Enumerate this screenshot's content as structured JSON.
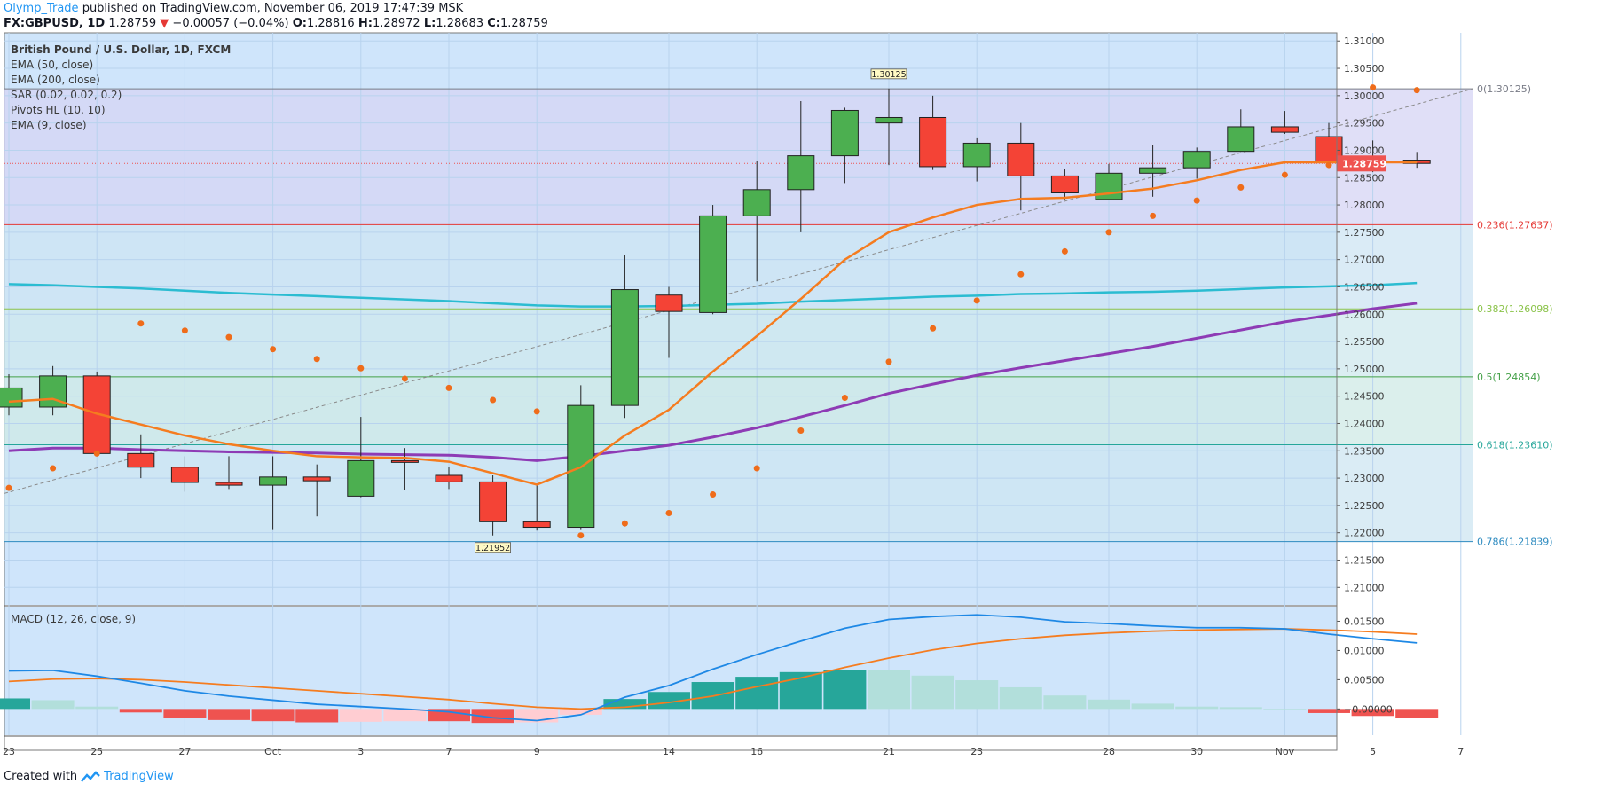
{
  "header": {
    "author": "Olymp_Trade",
    "published": "published on TradingView.com, November 06, 2019 17:47:39 MSK",
    "symbol": "FX:GBPUSD, 1D",
    "last": "1.28759",
    "change": "−0.00057 (−0.04%)",
    "o_label": "O:",
    "o": "1.28816",
    "h_label": "H:",
    "h": "1.28972",
    "l_label": "L:",
    "l": "1.28683",
    "c_label": "C:",
    "c": "1.28759"
  },
  "legend": {
    "title": "British Pound / U.S. Dollar, 1D, FXCM",
    "items": [
      "EMA (50, close)",
      "EMA (200, close)",
      "SAR (0.02, 0.02, 0.2)",
      "Pivots HL (10, 10)",
      "EMA (9, close)"
    ]
  },
  "macd_legend": "MACD (12, 26, close, 9)",
  "footer": {
    "created": "Created with",
    "brand": "TradingView"
  },
  "colors": {
    "up": "#4caf50",
    "down": "#f44336",
    "ema9": "#f57c1f",
    "ema50": "#8e3bb5",
    "ema200": "#2bbcd1",
    "sar": "#ef6c1a",
    "macd": "#1e88e5",
    "signal": "#f57c1f",
    "bg": "#cfe5fb",
    "price_tag": "#ef5350"
  },
  "chart_data": {
    "type": "candlestick",
    "price_axis": {
      "ylim": [
        1.2068,
        1.3115
      ],
      "ticks": [
        "1.31000",
        "1.30500",
        "1.30000",
        "1.29500",
        "1.29000",
        "1.28500",
        "1.28000",
        "1.27500",
        "1.27000",
        "1.26500",
        "1.26000",
        "1.25500",
        "1.25000",
        "1.24500",
        "1.24000",
        "1.23500",
        "1.23000",
        "1.22500",
        "1.22000",
        "1.21500",
        "1.21000"
      ],
      "current_price": "1.28759"
    },
    "x_axis": {
      "ticks": [
        {
          "label": "23",
          "i": 0
        },
        {
          "label": "25",
          "i": 2
        },
        {
          "label": "27",
          "i": 4
        },
        {
          "label": "Oct",
          "i": 6
        },
        {
          "label": "3",
          "i": 8
        },
        {
          "label": "7",
          "i": 10
        },
        {
          "label": "9",
          "i": 12
        },
        {
          "label": "14",
          "i": 15
        },
        {
          "label": "16",
          "i": 17
        },
        {
          "label": "21",
          "i": 20
        },
        {
          "label": "23",
          "i": 22
        },
        {
          "label": "28",
          "i": 25
        },
        {
          "label": "30",
          "i": 27
        },
        {
          "label": "Nov",
          "i": 29
        },
        {
          "label": "5",
          "i": 31
        },
        {
          "label": "7",
          "i": 33
        }
      ]
    },
    "candles": [
      {
        "o": 1.243,
        "h": 1.249,
        "l": 1.2415,
        "c": 1.2465
      },
      {
        "o": 1.243,
        "h": 1.2505,
        "l": 1.2415,
        "c": 1.2487
      },
      {
        "o": 1.2487,
        "h": 1.2495,
        "l": 1.2345,
        "c": 1.2345
      },
      {
        "o": 1.2345,
        "h": 1.238,
        "l": 1.23,
        "c": 1.232
      },
      {
        "o": 1.232,
        "h": 1.234,
        "l": 1.2275,
        "c": 1.2292
      },
      {
        "o": 1.2292,
        "h": 1.234,
        "l": 1.228,
        "c": 1.2287
      },
      {
        "o": 1.2287,
        "h": 1.234,
        "l": 1.2205,
        "c": 1.2302
      },
      {
        "o": 1.2302,
        "h": 1.2325,
        "l": 1.223,
        "c": 1.2295
      },
      {
        "o": 1.2267,
        "h": 1.2412,
        "l": 1.2265,
        "c": 1.2332
      },
      {
        "o": 1.2332,
        "h": 1.2355,
        "l": 1.2278,
        "c": 1.233
      },
      {
        "o": 1.2305,
        "h": 1.232,
        "l": 1.228,
        "c": 1.2293
      },
      {
        "o": 1.2293,
        "h": 1.2305,
        "l": 1.2195,
        "c": 1.222
      },
      {
        "o": 1.222,
        "h": 1.229,
        "l": 1.2204,
        "c": 1.221
      },
      {
        "o": 1.221,
        "h": 1.247,
        "l": 1.2205,
        "c": 1.2433
      },
      {
        "o": 1.2433,
        "h": 1.2708,
        "l": 1.241,
        "c": 1.2645
      },
      {
        "o": 1.2635,
        "h": 1.265,
        "l": 1.252,
        "c": 1.2605
      },
      {
        "o": 1.2603,
        "h": 1.28,
        "l": 1.26,
        "c": 1.278
      },
      {
        "o": 1.278,
        "h": 1.288,
        "l": 1.266,
        "c": 1.2828
      },
      {
        "o": 1.2828,
        "h": 1.299,
        "l": 1.275,
        "c": 1.289
      },
      {
        "o": 1.289,
        "h": 1.2978,
        "l": 1.284,
        "c": 1.2973
      },
      {
        "o": 1.295,
        "h": 1.3013,
        "l": 1.2873,
        "c": 1.296
      },
      {
        "o": 1.296,
        "h": 1.3,
        "l": 1.2864,
        "c": 1.287
      },
      {
        "o": 1.287,
        "h": 1.2922,
        "l": 1.2843,
        "c": 1.2913
      },
      {
        "o": 1.2913,
        "h": 1.295,
        "l": 1.279,
        "c": 1.2853
      },
      {
        "o": 1.2853,
        "h": 1.2865,
        "l": 1.281,
        "c": 1.2822
      },
      {
        "o": 1.281,
        "h": 1.2875,
        "l": 1.281,
        "c": 1.2858
      },
      {
        "o": 1.2858,
        "h": 1.291,
        "l": 1.2815,
        "c": 1.2868
      },
      {
        "o": 1.2868,
        "h": 1.2905,
        "l": 1.2848,
        "c": 1.2898
      },
      {
        "o": 1.2898,
        "h": 1.2975,
        "l": 1.2898,
        "c": 1.2943
      },
      {
        "o": 1.2943,
        "h": 1.2972,
        "l": 1.293,
        "c": 1.2933
      },
      {
        "o": 1.2925,
        "h": 1.295,
        "l": 1.287,
        "c": 1.288
      },
      {
        "o": 1.288,
        "h": 1.2918,
        "l": 1.286,
        "c": 1.2882
      },
      {
        "o": 1.2882,
        "h": 1.2897,
        "l": 1.2868,
        "c": 1.2876
      }
    ],
    "ema9": [
      1.244,
      1.2445,
      1.2418,
      1.2398,
      1.2378,
      1.2362,
      1.235,
      1.234,
      1.2338,
      1.2337,
      1.233,
      1.2309,
      1.2288,
      1.232,
      1.2378,
      1.2425,
      1.2495,
      1.256,
      1.2628,
      1.27,
      1.275,
      1.2777,
      1.28,
      1.2811,
      1.2813,
      1.2821,
      1.283,
      1.2845,
      1.2864,
      1.2878,
      1.2878,
      1.2878,
      1.2878
    ],
    "ema50": [
      1.235,
      1.2355,
      1.2355,
      1.2352,
      1.235,
      1.2348,
      1.2347,
      1.2346,
      1.2344,
      1.2343,
      1.2342,
      1.2338,
      1.2332,
      1.234,
      1.235,
      1.236,
      1.2375,
      1.2392,
      1.2412,
      1.2433,
      1.2455,
      1.2472,
      1.2488,
      1.2502,
      1.2515,
      1.2528,
      1.2541,
      1.2556,
      1.2571,
      1.2586,
      1.2598,
      1.261,
      1.262
    ],
    "ema200": [
      1.2655,
      1.2653,
      1.265,
      1.2647,
      1.2643,
      1.2639,
      1.2636,
      1.2633,
      1.263,
      1.2627,
      1.2624,
      1.262,
      1.2616,
      1.2614,
      1.2614,
      1.2615,
      1.2617,
      1.2619,
      1.2623,
      1.2626,
      1.2629,
      1.2632,
      1.2634,
      1.2637,
      1.2638,
      1.264,
      1.2641,
      1.2643,
      1.2646,
      1.2649,
      1.2651,
      1.2653,
      1.2657
    ],
    "sar": [
      1.2282,
      1.2318,
      1.2345,
      1.2583,
      1.257,
      1.2558,
      1.2536,
      1.2518,
      1.2501,
      1.2482,
      1.2465,
      1.2443,
      1.2422,
      1.2195,
      1.2217,
      1.2236,
      1.227,
      1.2318,
      1.2387,
      1.2447,
      1.2513,
      1.2574,
      1.2625,
      1.2673,
      1.2715,
      1.275,
      1.278,
      1.2808,
      1.2832,
      1.2855,
      1.2873,
      1.3015,
      1.301
    ],
    "fibonacci": [
      {
        "label": "0(1.30125)",
        "value": 1.30125,
        "color": "#787b86"
      },
      {
        "label": "0.236(1.27637)",
        "value": 1.27637,
        "color": "#e53935"
      },
      {
        "label": "0.382(1.26098)",
        "value": 1.26098,
        "color": "#8bc34a"
      },
      {
        "label": "0.5(1.24854)",
        "value": 1.24854,
        "color": "#43a047"
      },
      {
        "label": "0.618(1.23610)",
        "value": 1.2361,
        "color": "#26a69a"
      },
      {
        "label": "0.786(1.21839)",
        "value": 1.21839,
        "color": "#2e8bc0"
      }
    ],
    "pivots": [
      {
        "label": "1.30125",
        "i": 20,
        "type": "high"
      },
      {
        "label": "1.21952",
        "i": 11,
        "type": "low"
      }
    ],
    "macd": {
      "ylim": [
        -0.0045,
        0.0175
      ],
      "ticks": [
        "0.01500",
        "0.01000",
        "0.00500",
        "−0.00000"
      ],
      "macd": [
        0.0065,
        0.0066,
        0.0056,
        0.0044,
        0.0031,
        0.0022,
        0.0015,
        0.0008,
        0.0004,
        0.0,
        -0.0005,
        -0.0015,
        -0.002,
        -0.001,
        0.002,
        0.004,
        0.0068,
        0.0093,
        0.0116,
        0.0138,
        0.0153,
        0.0158,
        0.0161,
        0.0157,
        0.0149,
        0.0146,
        0.0142,
        0.0139,
        0.0139,
        0.0137,
        0.0128,
        0.012,
        0.0113
      ],
      "signal": [
        0.0047,
        0.0051,
        0.0052,
        0.005,
        0.0046,
        0.0041,
        0.0036,
        0.0031,
        0.0026,
        0.0021,
        0.0016,
        0.0009,
        0.0003,
        0.0,
        0.0003,
        0.0011,
        0.0022,
        0.0038,
        0.0053,
        0.0071,
        0.0087,
        0.0101,
        0.0112,
        0.012,
        0.0126,
        0.013,
        0.0133,
        0.0135,
        0.0136,
        0.0137,
        0.0135,
        0.0132,
        0.0128
      ],
      "histogram": [
        0.0018,
        0.0015,
        0.0004,
        -0.0006,
        -0.0015,
        -0.0019,
        -0.0021,
        -0.0023,
        -0.0022,
        -0.0021,
        -0.0021,
        -0.0024,
        -0.0023,
        -0.001,
        0.0017,
        0.0029,
        0.0046,
        0.0055,
        0.0063,
        0.0067,
        0.0066,
        0.0057,
        0.0049,
        0.0037,
        0.0023,
        0.0016,
        0.0009,
        0.0004,
        0.0003,
        0.0,
        -0.0007,
        -0.0012,
        -0.0015
      ]
    }
  }
}
